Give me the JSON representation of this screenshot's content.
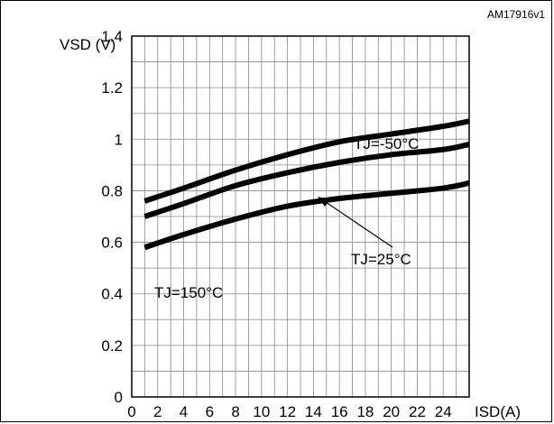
{
  "chart_data": {
    "type": "line",
    "code": "AM17916v1",
    "ylabel": "VSD (V)",
    "xlabel": "ISD(A)",
    "xlim": [
      0,
      26
    ],
    "ylim": [
      0,
      1.4
    ],
    "yticks": [
      0,
      0.2,
      0.4,
      0.6,
      0.8,
      1,
      1.2,
      1.4
    ],
    "ytick_labels": [
      "0",
      "0.2",
      "0.4",
      "0.6",
      "0.8",
      "1",
      "1.2",
      "1.4"
    ],
    "xticks": [
      0,
      2,
      4,
      6,
      8,
      10,
      12,
      14,
      16,
      18,
      20,
      22,
      24
    ],
    "xtick_labels": [
      "0",
      "2",
      "4",
      "6",
      "8",
      "10",
      "12",
      "14",
      "16",
      "18",
      "20",
      "22",
      "24"
    ],
    "grid": true,
    "series": [
      {
        "name": "TJ=-50°C",
        "x": [
          1,
          4,
          8,
          12,
          16,
          20,
          24,
          26
        ],
        "y": [
          0.76,
          0.81,
          0.88,
          0.94,
          0.99,
          1.02,
          1.05,
          1.07
        ]
      },
      {
        "name": "TJ=25°C",
        "x": [
          1,
          4,
          8,
          12,
          16,
          20,
          24,
          26
        ],
        "y": [
          0.7,
          0.75,
          0.82,
          0.87,
          0.91,
          0.94,
          0.96,
          0.98
        ]
      },
      {
        "name": "TJ=150°C",
        "x": [
          1,
          4,
          8,
          12,
          16,
          20,
          24,
          26
        ],
        "y": [
          0.58,
          0.63,
          0.69,
          0.74,
          0.77,
          0.79,
          0.81,
          0.83
        ]
      }
    ]
  }
}
